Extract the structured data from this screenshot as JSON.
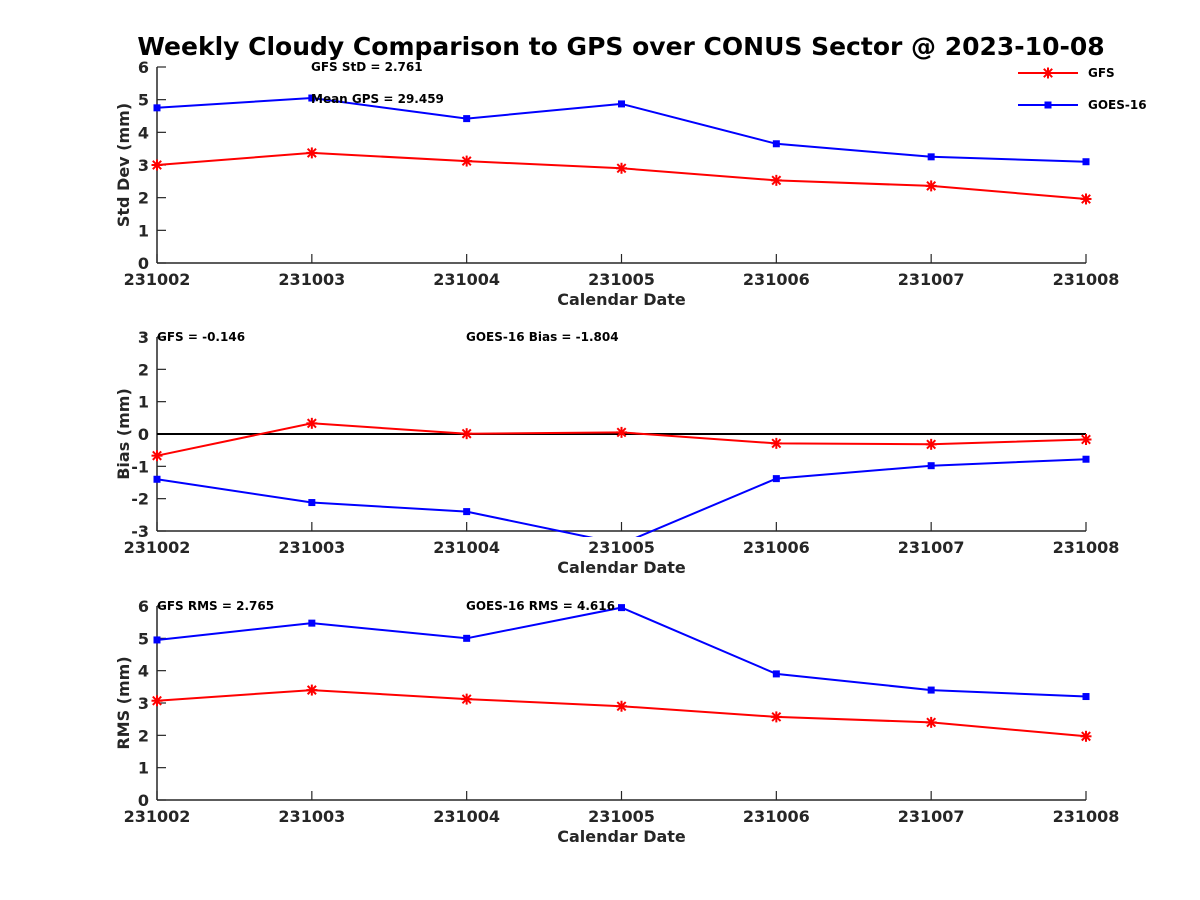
{
  "title": "Weekly Cloudy Comparison to GPS over CONUS Sector @ 2023-10-08",
  "legend": {
    "entries": [
      "GFS",
      "GOES-16"
    ],
    "placement": "top-right"
  },
  "colors": {
    "GFS": "#ff0000",
    "GOES-16": "#0000ff",
    "axis": "#262626",
    "zero_line": "#000000"
  },
  "chart_data": [
    {
      "type": "line",
      "categories": [
        "231002",
        "231003",
        "231004",
        "231005",
        "231006",
        "231007",
        "231008"
      ],
      "xlabel": "Calendar Date",
      "ylabel": "Std Dev (mm)",
      "ylim": [
        0,
        6
      ],
      "yticks": [
        0,
        1,
        2,
        3,
        4,
        5,
        6
      ],
      "grid": false,
      "series": [
        {
          "name": "GFS",
          "values": [
            3.0,
            3.37,
            3.12,
            2.9,
            2.53,
            2.36,
            1.96
          ]
        },
        {
          "name": "GOES-16",
          "values": [
            4.75,
            5.05,
            4.42,
            4.87,
            3.65,
            3.25,
            3.1
          ]
        }
      ],
      "annotations": [
        "GFS StD = 2.761",
        "Mean GPS = 29.459"
      ]
    },
    {
      "type": "line",
      "categories": [
        "231002",
        "231003",
        "231004",
        "231005",
        "231006",
        "231007",
        "231008"
      ],
      "xlabel": "Calendar Date",
      "ylabel": "Bias (mm)",
      "ylim": [
        -3,
        3
      ],
      "yticks": [
        -3,
        -2,
        -1,
        0,
        1,
        2,
        3
      ],
      "zero_line": true,
      "grid": false,
      "series": [
        {
          "name": "GFS",
          "values": [
            -0.67,
            0.33,
            0.01,
            0.05,
            -0.29,
            -0.32,
            -0.17
          ]
        },
        {
          "name": "GOES-16",
          "values": [
            -1.4,
            -2.12,
            -2.4,
            -3.4,
            -1.38,
            -0.98,
            -0.78
          ]
        }
      ],
      "annotations": [
        "GFS = -0.146",
        "GOES-16 Bias  = -1.804"
      ]
    },
    {
      "type": "line",
      "categories": [
        "231002",
        "231003",
        "231004",
        "231005",
        "231006",
        "231007",
        "231008"
      ],
      "xlabel": "Calendar Date",
      "ylabel": "RMS (mm)",
      "ylim": [
        0,
        6
      ],
      "yticks": [
        0,
        1,
        2,
        3,
        4,
        5,
        6
      ],
      "grid": false,
      "series": [
        {
          "name": "GFS",
          "values": [
            3.07,
            3.4,
            3.12,
            2.9,
            2.57,
            2.4,
            1.97
          ]
        },
        {
          "name": "GOES-16",
          "values": [
            4.95,
            5.47,
            5.0,
            5.95,
            3.9,
            3.4,
            3.2
          ]
        }
      ],
      "annotations": [
        "GFS RMS = 2.765",
        "GOES-16 RMS = 4.616"
      ]
    }
  ]
}
